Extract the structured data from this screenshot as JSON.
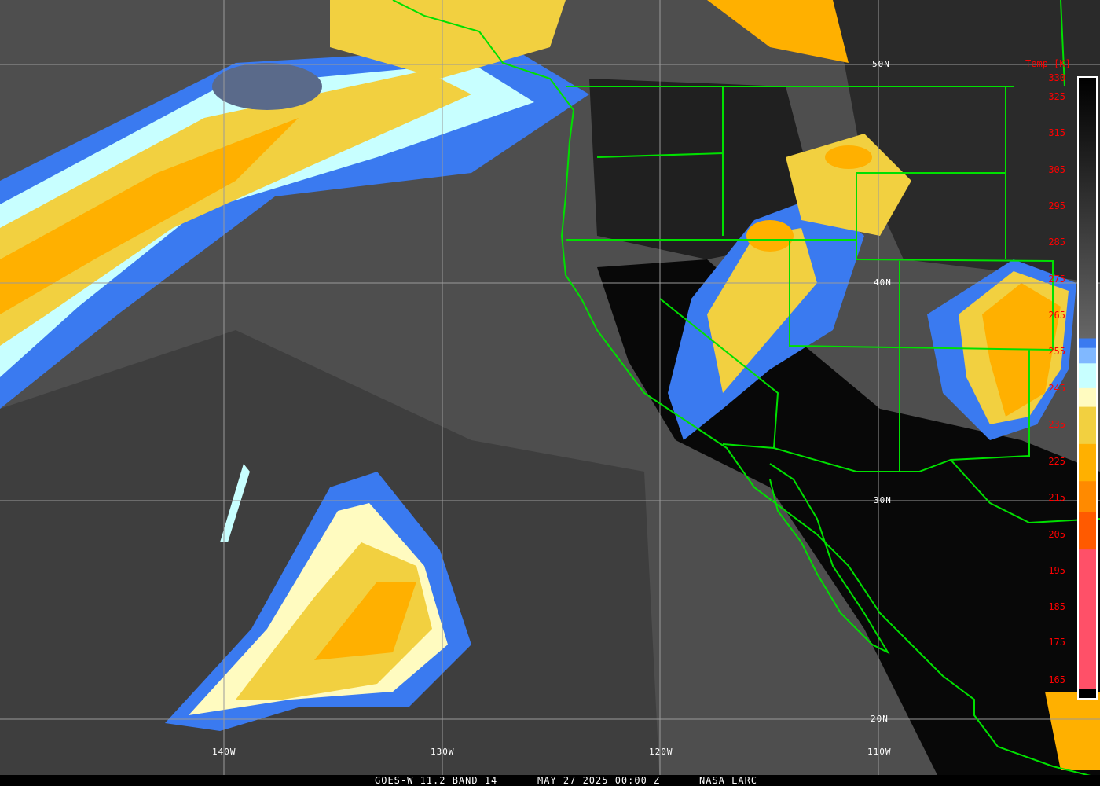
{
  "caption": {
    "satellite": "GOES-W 11.2 BAND 14",
    "datetime": "MAY 27 2025 00:00 Z",
    "source": "NASA LARC"
  },
  "latitude_labels": [
    "50N",
    "40N",
    "30N",
    "20N"
  ],
  "longitude_labels": [
    "140W",
    "130W",
    "120W",
    "110W"
  ],
  "colorbar": {
    "title": "Temp [K]",
    "ticks": [
      "330",
      "325",
      "315",
      "305",
      "295",
      "285",
      "275",
      "265",
      "255",
      "245",
      "235",
      "225",
      "215",
      "205",
      "195",
      "185",
      "175",
      "165"
    ],
    "range_k": [
      165,
      330
    ],
    "colors": [
      "#000000",
      "#ffffff",
      "#3a7af0",
      "#80b8ff",
      "#c8ffff",
      "#fffbc0",
      "#f2d040",
      "#ffb000",
      "#ff8a00",
      "#ff5a00",
      "#ff5068"
    ]
  },
  "map_colors": {
    "borders": "#00e000",
    "graticule": "#9a9a9a"
  }
}
